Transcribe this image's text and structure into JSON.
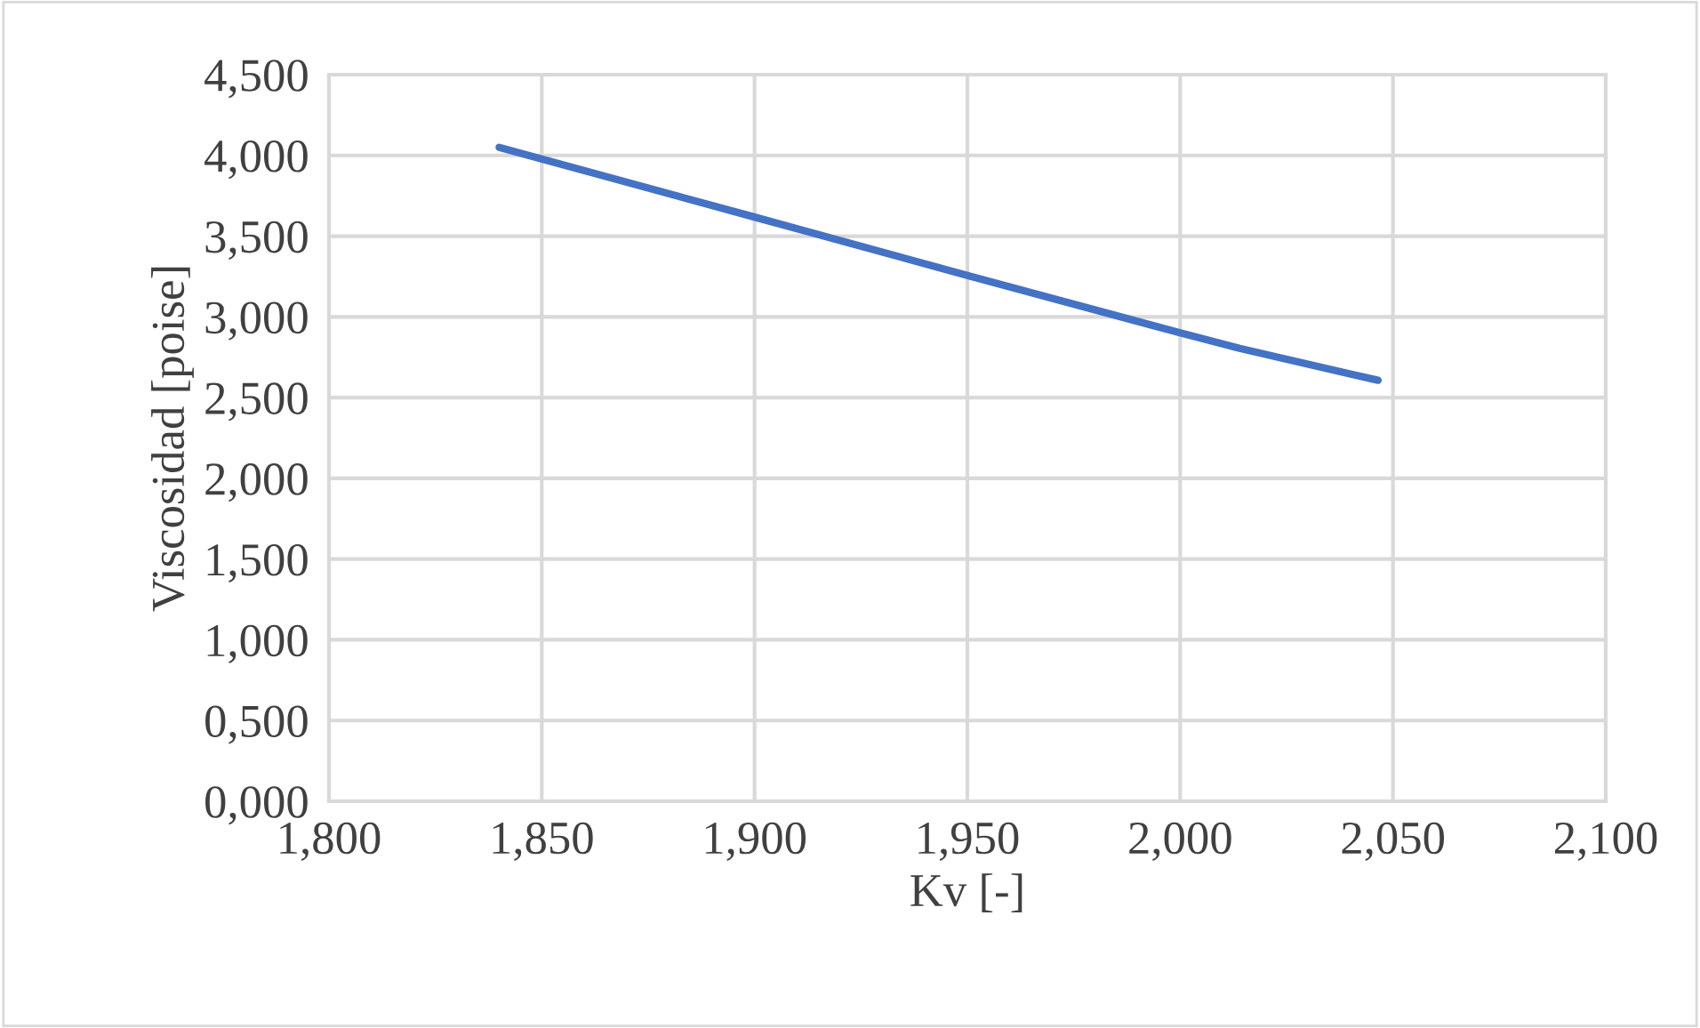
{
  "chart_data": {
    "type": "line",
    "xlabel": "Kv [-]",
    "ylabel": "Viscosidad [poise]",
    "x": [
      1.84,
      1.9,
      1.95,
      2.0,
      2.014,
      2.0465
    ],
    "series": [
      {
        "color": "#4472c4",
        "values": [
          4.05,
          3.618,
          3.257,
          2.901,
          2.805,
          2.607
        ]
      }
    ],
    "xlim": [
      1.8,
      2.1
    ],
    "xticks": [
      {
        "value": 1.8,
        "label": "1,800"
      },
      {
        "value": 1.85,
        "label": "1,850"
      },
      {
        "value": 1.9,
        "label": "1,900"
      },
      {
        "value": 1.95,
        "label": "1,950"
      },
      {
        "value": 2.0,
        "label": "2,000"
      },
      {
        "value": 2.05,
        "label": "2,050"
      },
      {
        "value": 2.1,
        "label": "2,100"
      }
    ],
    "ylim": [
      0,
      4.5
    ],
    "yticks": [
      {
        "value": 0,
        "label": "0,000"
      },
      {
        "value": 0.5,
        "label": "0,500"
      },
      {
        "value": 1.0,
        "label": "1,000"
      },
      {
        "value": 1.5,
        "label": "1,500"
      },
      {
        "value": 2.0,
        "label": "2,000"
      },
      {
        "value": 2.5,
        "label": "2,500"
      },
      {
        "value": 3.0,
        "label": "3,000"
      },
      {
        "value": 3.5,
        "label": "3,500"
      },
      {
        "value": 4.0,
        "label": "4,000"
      },
      {
        "value": 4.5,
        "label": "4,500"
      }
    ],
    "grid": true,
    "marker": "none",
    "line_style": "solid"
  }
}
